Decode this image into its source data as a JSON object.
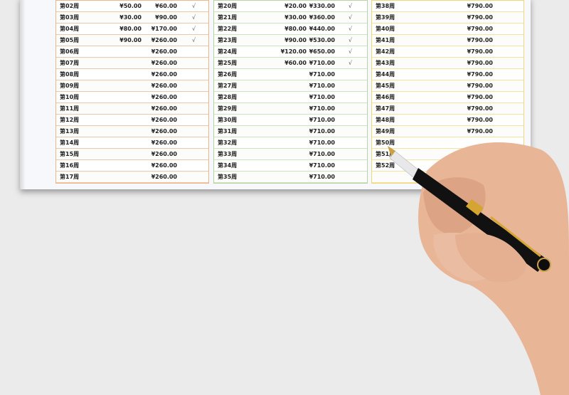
{
  "tables": [
    {
      "rows": [
        {
          "week": "第02周",
          "amount": "¥50.00",
          "total": "¥60.00",
          "check": "√"
        },
        {
          "week": "第03周",
          "amount": "¥30.00",
          "total": "¥90.00",
          "check": "√"
        },
        {
          "week": "第04周",
          "amount": "¥80.00",
          "total": "¥170.00",
          "check": "√"
        },
        {
          "week": "第05周",
          "amount": "¥90.00",
          "total": "¥260.00",
          "check": "√"
        },
        {
          "week": "第06周",
          "amount": "",
          "total": "¥260.00",
          "check": ""
        },
        {
          "week": "第07周",
          "amount": "",
          "total": "¥260.00",
          "check": ""
        },
        {
          "week": "第08周",
          "amount": "",
          "total": "¥260.00",
          "check": ""
        },
        {
          "week": "第09周",
          "amount": "",
          "total": "¥260.00",
          "check": ""
        },
        {
          "week": "第10周",
          "amount": "",
          "total": "¥260.00",
          "check": ""
        },
        {
          "week": "第11周",
          "amount": "",
          "total": "¥260.00",
          "check": ""
        },
        {
          "week": "第12周",
          "amount": "",
          "total": "¥260.00",
          "check": ""
        },
        {
          "week": "第13周",
          "amount": "",
          "total": "¥260.00",
          "check": ""
        },
        {
          "week": "第14周",
          "amount": "",
          "total": "¥260.00",
          "check": ""
        },
        {
          "week": "第15周",
          "amount": "",
          "total": "¥260.00",
          "check": ""
        },
        {
          "week": "第16周",
          "amount": "",
          "total": "¥260.00",
          "check": ""
        },
        {
          "week": "第17周",
          "amount": "",
          "total": "¥260.00",
          "check": ""
        }
      ]
    },
    {
      "rows": [
        {
          "week": "第20周",
          "amount": "¥20.00",
          "total": "¥330.00",
          "check": "√"
        },
        {
          "week": "第21周",
          "amount": "¥30.00",
          "total": "¥360.00",
          "check": "√"
        },
        {
          "week": "第22周",
          "amount": "¥80.00",
          "total": "¥440.00",
          "check": "√"
        },
        {
          "week": "第23周",
          "amount": "¥90.00",
          "total": "¥530.00",
          "check": "√"
        },
        {
          "week": "第24周",
          "amount": "¥120.00",
          "total": "¥650.00",
          "check": "√"
        },
        {
          "week": "第25周",
          "amount": "¥60.00",
          "total": "¥710.00",
          "check": "√"
        },
        {
          "week": "第26周",
          "amount": "",
          "total": "¥710.00",
          "check": ""
        },
        {
          "week": "第27周",
          "amount": "",
          "total": "¥710.00",
          "check": ""
        },
        {
          "week": "第28周",
          "amount": "",
          "total": "¥710.00",
          "check": ""
        },
        {
          "week": "第29周",
          "amount": "",
          "total": "¥710.00",
          "check": ""
        },
        {
          "week": "第30周",
          "amount": "",
          "total": "¥710.00",
          "check": ""
        },
        {
          "week": "第31周",
          "amount": "",
          "total": "¥710.00",
          "check": ""
        },
        {
          "week": "第32周",
          "amount": "",
          "total": "¥710.00",
          "check": ""
        },
        {
          "week": "第33周",
          "amount": "",
          "total": "¥710.00",
          "check": ""
        },
        {
          "week": "第34周",
          "amount": "",
          "total": "¥710.00",
          "check": ""
        },
        {
          "week": "第35周",
          "amount": "",
          "total": "¥710.00",
          "check": ""
        }
      ]
    },
    {
      "rows": [
        {
          "week": "第38周",
          "amount": "",
          "total": "¥790.00",
          "check": ""
        },
        {
          "week": "第39周",
          "amount": "",
          "total": "¥790.00",
          "check": ""
        },
        {
          "week": "第40周",
          "amount": "",
          "total": "¥790.00",
          "check": ""
        },
        {
          "week": "第41周",
          "amount": "",
          "total": "¥790.00",
          "check": ""
        },
        {
          "week": "第42周",
          "amount": "",
          "total": "¥790.00",
          "check": ""
        },
        {
          "week": "第43周",
          "amount": "",
          "total": "¥790.00",
          "check": ""
        },
        {
          "week": "第44周",
          "amount": "",
          "total": "¥790.00",
          "check": ""
        },
        {
          "week": "第45周",
          "amount": "",
          "total": "¥790.00",
          "check": ""
        },
        {
          "week": "第46周",
          "amount": "",
          "total": "¥790.00",
          "check": ""
        },
        {
          "week": "第47周",
          "amount": "",
          "total": "¥790.00",
          "check": ""
        },
        {
          "week": "第48周",
          "amount": "",
          "total": "¥790.00",
          "check": ""
        },
        {
          "week": "第49周",
          "amount": "",
          "total": "¥790.00",
          "check": ""
        },
        {
          "week": "第50周",
          "amount": "",
          "total": "",
          "check": ""
        },
        {
          "week": "第51周",
          "amount": "",
          "total": "",
          "check": ""
        },
        {
          "week": "第52周",
          "amount": "",
          "total": "",
          "check": ""
        },
        {
          "week": "",
          "amount": "",
          "total": "",
          "check": ""
        }
      ]
    }
  ]
}
